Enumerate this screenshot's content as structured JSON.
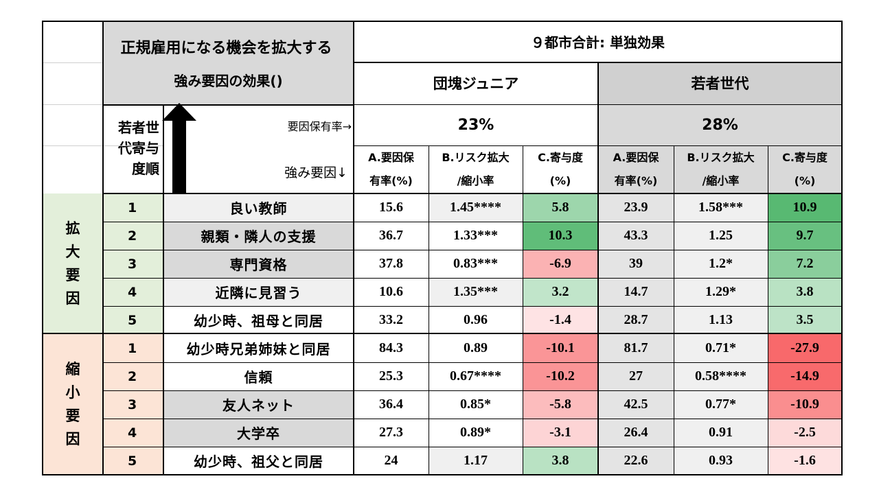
{
  "header": {
    "title_line1": "正規雇用になる機会を拡大する",
    "title_line2": "強み要因の効果()",
    "main_heading": "９都市合計: 単独効果",
    "group1": "団塊ジュニア",
    "group2": "若者世代",
    "rate_label": "要因保有率→",
    "group1_rate": "23%",
    "group2_rate": "28%",
    "rank_label": [
      "若者世",
      "代寄与",
      "度順"
    ],
    "factor_label": "強み要因↓",
    "col_a": [
      "A.要因保",
      "有率(%)"
    ],
    "col_b": [
      "B.リスク拡大",
      "/縮小率"
    ],
    "col_c": [
      "C.寄与度",
      "(%)"
    ]
  },
  "sections": [
    {
      "label": [
        "拡",
        "大",
        "要",
        "因"
      ],
      "rows": [
        {
          "rank": "1",
          "factor": "良い教師",
          "g1": {
            "a": "15.6",
            "b": "1.45****",
            "c": "5.8"
          },
          "g2": {
            "a": "23.9",
            "b": "1.58***",
            "c": "10.9"
          }
        },
        {
          "rank": "2",
          "factor": "親類・隣人の支援",
          "g1": {
            "a": "36.7",
            "b": "1.33***",
            "c": "10.3"
          },
          "g2": {
            "a": "43.3",
            "b": "1.25",
            "c": "9.7"
          }
        },
        {
          "rank": "3",
          "factor": "専門資格",
          "g1": {
            "a": "37.8",
            "b": "0.83***",
            "c": "-6.9"
          },
          "g2": {
            "a": "39",
            "b": "1.2*",
            "c": "7.2"
          }
        },
        {
          "rank": "4",
          "factor": "近隣に見習う",
          "g1": {
            "a": "10.6",
            "b": "1.35***",
            "c": "3.2"
          },
          "g2": {
            "a": "14.7",
            "b": "1.29*",
            "c": "3.8"
          }
        },
        {
          "rank": "5",
          "factor": "幼少時、祖母と同居",
          "g1": {
            "a": "33.2",
            "b": "0.96",
            "c": "-1.4"
          },
          "g2": {
            "a": "28.7",
            "b": "1.13",
            "c": "3.5"
          }
        }
      ]
    },
    {
      "label": [
        "縮",
        "小",
        "要",
        "因"
      ],
      "rows": [
        {
          "rank": "1",
          "factor": "幼少時兄弟姉妹と同居",
          "g1": {
            "a": "84.3",
            "b": "0.89",
            "c": "-10.1"
          },
          "g2": {
            "a": "81.7",
            "b": "0.71*",
            "c": "-27.9"
          }
        },
        {
          "rank": "2",
          "factor": "信頼",
          "g1": {
            "a": "25.3",
            "b": "0.67****",
            "c": "-10.2"
          },
          "g2": {
            "a": "27",
            "b": "0.58****",
            "c": "-14.9"
          }
        },
        {
          "rank": "3",
          "factor": "友人ネット",
          "g1": {
            "a": "36.4",
            "b": "0.85*",
            "c": "-5.8"
          },
          "g2": {
            "a": "42.5",
            "b": "0.77*",
            "c": "-10.9"
          }
        },
        {
          "rank": "4",
          "factor": "大学卒",
          "g1": {
            "a": "27.3",
            "b": "0.89*",
            "c": "-3.1"
          },
          "g2": {
            "a": "26.4",
            "b": "0.91",
            "c": "-2.5"
          }
        },
        {
          "rank": "5",
          "factor": "幼少時、祖父と同居",
          "g1": {
            "a": "24",
            "b": "1.17",
            "c": "3.8"
          },
          "g2": {
            "a": "22.6",
            "b": "0.93",
            "c": "-1.6"
          }
        }
      ]
    }
  ],
  "colors": {
    "header_gray": "#d9d9d9",
    "expand_section": "#e3efda",
    "shrink_section": "#fce4d6",
    "positive_scale": "#63be7b",
    "negative_scale": "#f8696b"
  }
}
